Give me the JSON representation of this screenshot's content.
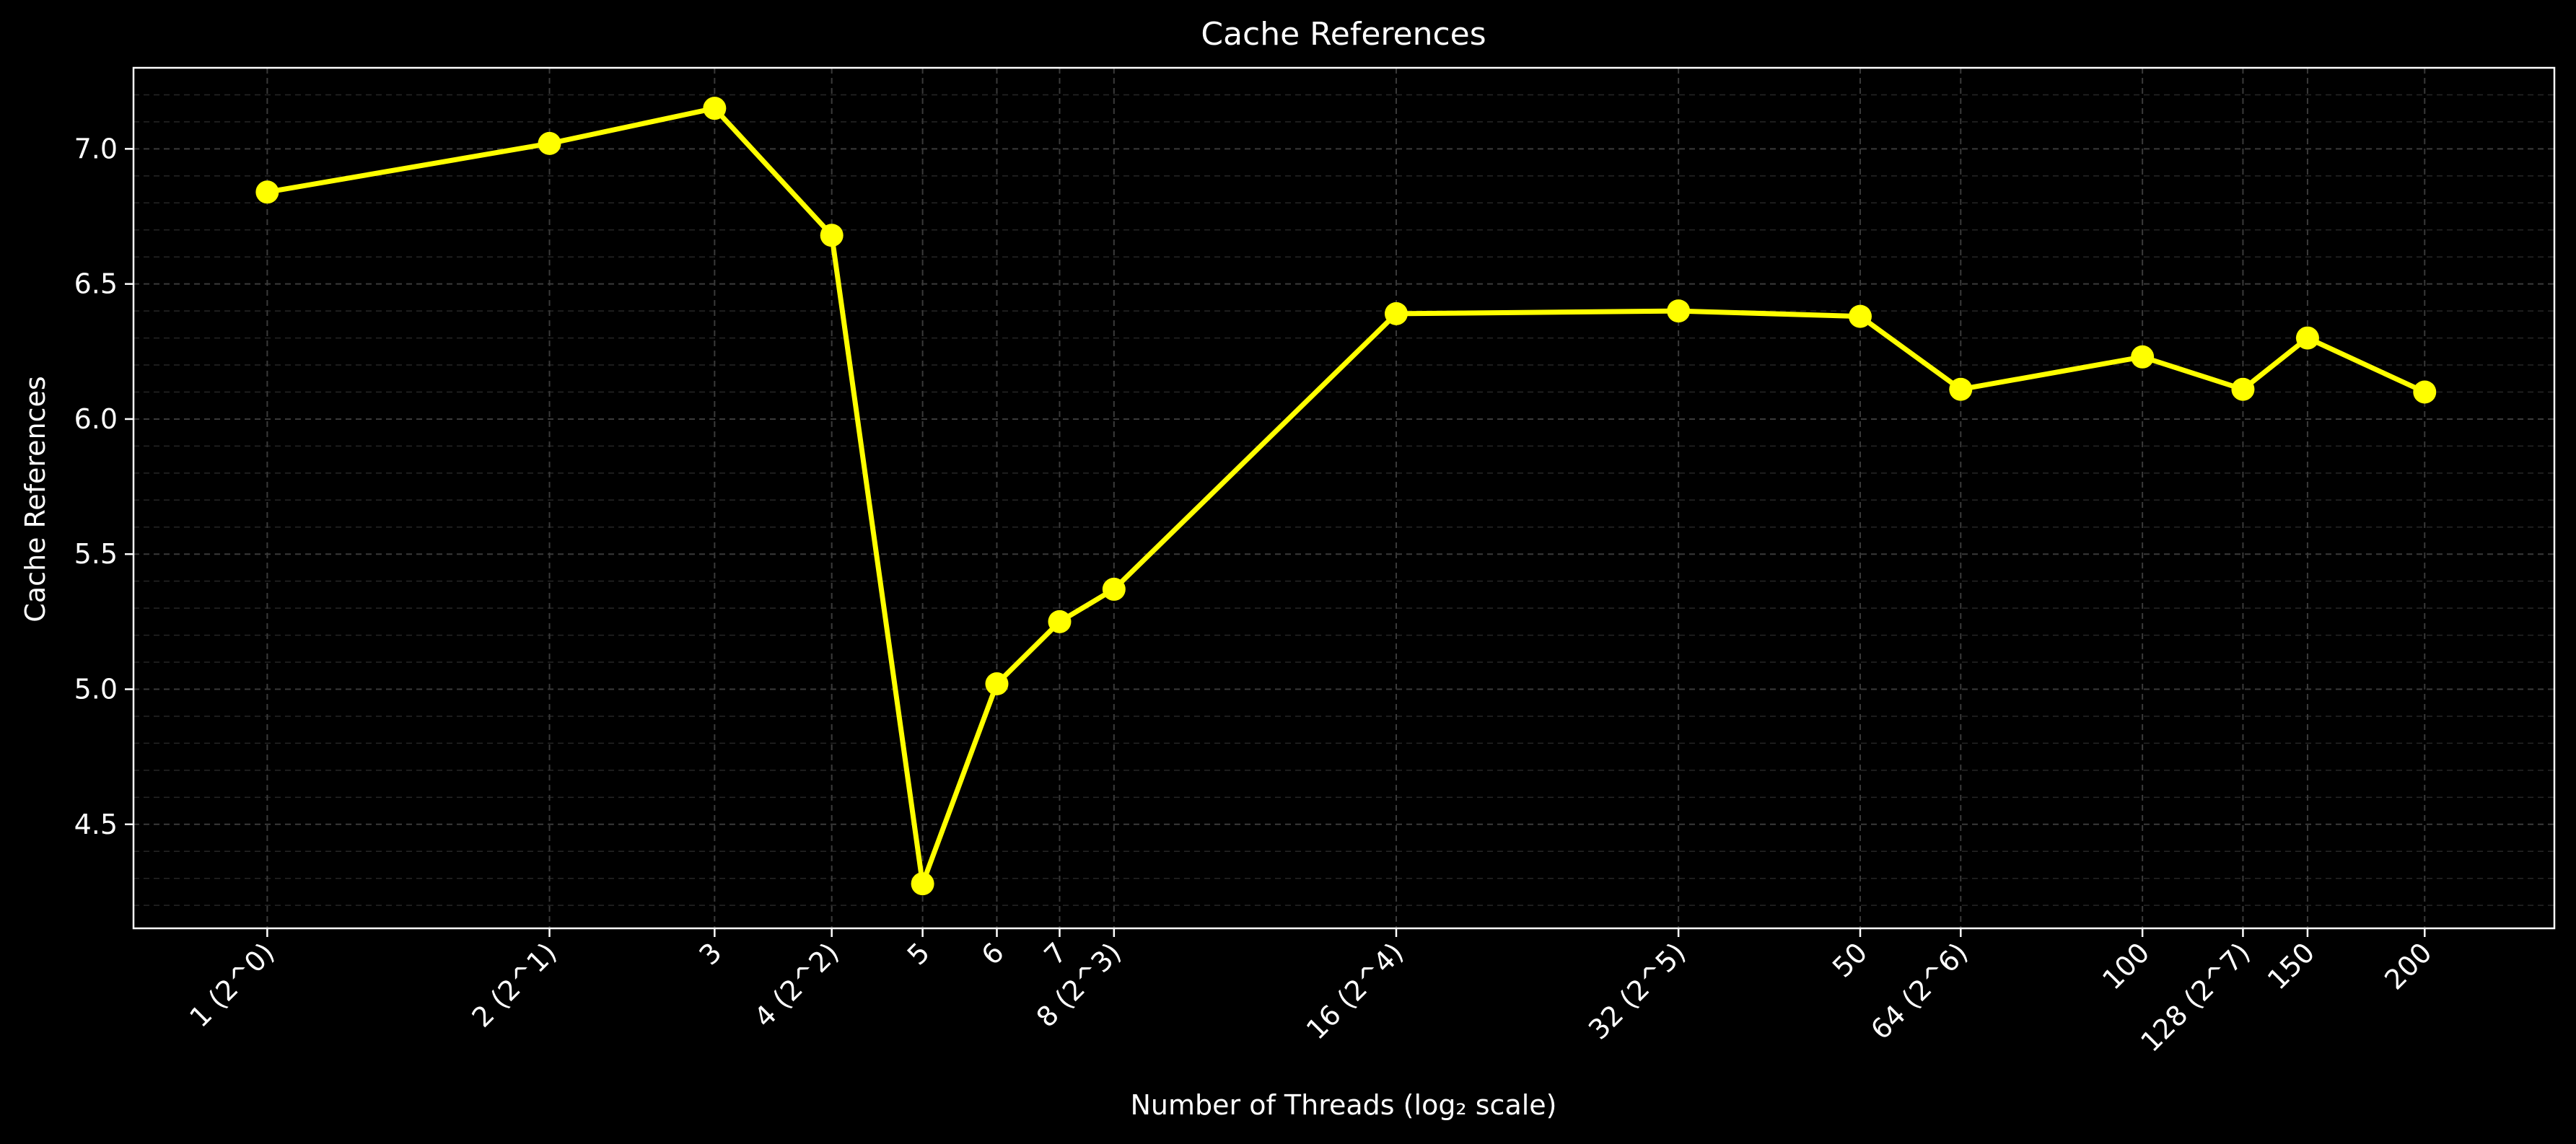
{
  "chart_data": {
    "type": "line",
    "title": "Cache References",
    "xlabel": "Number of Threads (log₂ scale)",
    "ylabel": "Cache References",
    "x_scale": "log2",
    "xlim": [
      0.72,
      275
    ],
    "ylim": [
      4.115,
      7.3
    ],
    "grid": true,
    "y_ticks": [
      4.5,
      5.0,
      5.5,
      6.0,
      6.5,
      7.0
    ],
    "y_tick_labels": [
      "4.5",
      "5.0",
      "5.5",
      "6.0",
      "6.5",
      "7.0"
    ],
    "x_ticks": [
      1,
      2,
      3,
      4,
      5,
      6,
      7,
      8,
      16,
      32,
      50,
      64,
      100,
      128,
      150,
      200
    ],
    "x_tick_labels": [
      "1 (2^0)",
      "2 (2^1)",
      "3",
      "4 (2^2)",
      "5",
      "6",
      "7",
      "8 (2^3)",
      "16 (2^4)",
      "32 (2^5)",
      "50",
      "64 (2^6)",
      "100",
      "128 (2^7)",
      "150",
      "200"
    ],
    "series": [
      {
        "color": "#ffff00",
        "x": [
          1,
          2,
          3,
          4,
          5,
          6,
          7,
          8,
          16,
          32,
          50,
          64,
          100,
          128,
          150,
          200
        ],
        "y": [
          6.84,
          7.02,
          7.15,
          6.68,
          4.28,
          5.02,
          5.25,
          5.37,
          6.39,
          6.4,
          6.38,
          6.11,
          6.23,
          6.11,
          6.3,
          6.1
        ]
      }
    ],
    "colors": {
      "background": "#000000",
      "axes": "#ffffff",
      "grid": "#3a3a3a",
      "line": "#ffff00"
    }
  }
}
